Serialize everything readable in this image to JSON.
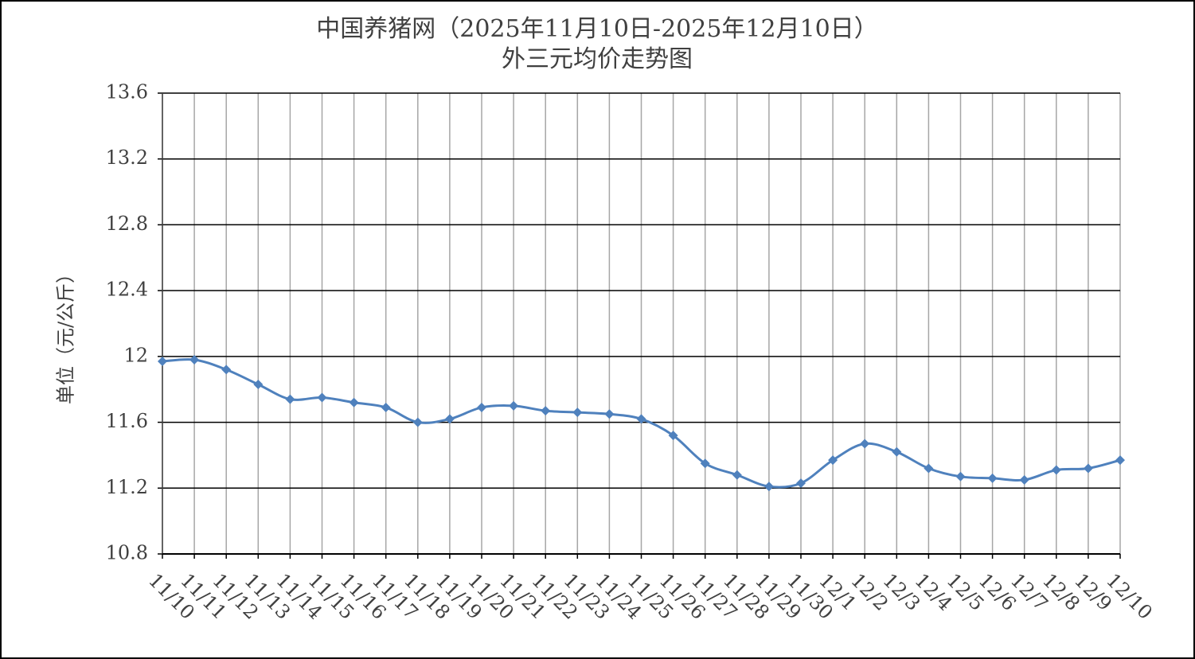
{
  "chart_data": {
    "type": "line",
    "title": "中国养猪网（2025年11月10日-2025年12月10日）",
    "subtitle": "外三元均价走势图",
    "y_label": "单位（元/公斤）",
    "categories": [
      "11/10",
      "11/11",
      "11/12",
      "11/13",
      "11/14",
      "11/15",
      "11/16",
      "11/17",
      "11/18",
      "11/19",
      "11/20",
      "11/21",
      "11/22",
      "11/23",
      "11/24",
      "11/25",
      "11/26",
      "11/27",
      "11/28",
      "11/29",
      "11/30",
      "12/1",
      "12/2",
      "12/3",
      "12/4",
      "12/5",
      "12/6",
      "12/7",
      "12/8",
      "12/9",
      "12/10"
    ],
    "values": [
      11.97,
      11.98,
      11.92,
      11.83,
      11.74,
      11.75,
      11.72,
      11.69,
      11.6,
      11.62,
      11.69,
      11.7,
      11.67,
      11.66,
      11.65,
      11.62,
      11.52,
      11.35,
      11.28,
      11.21,
      11.23,
      11.37,
      11.47,
      11.42,
      11.32,
      11.27,
      11.26,
      11.25,
      11.31,
      11.32,
      11.37
    ],
    "color": "#4f81bd",
    "ylim": [
      10.8,
      13.6
    ],
    "yticks": [
      10.8,
      11.2,
      11.6,
      12,
      12.4,
      12.8,
      13.2,
      13.6
    ],
    "grid": true
  }
}
